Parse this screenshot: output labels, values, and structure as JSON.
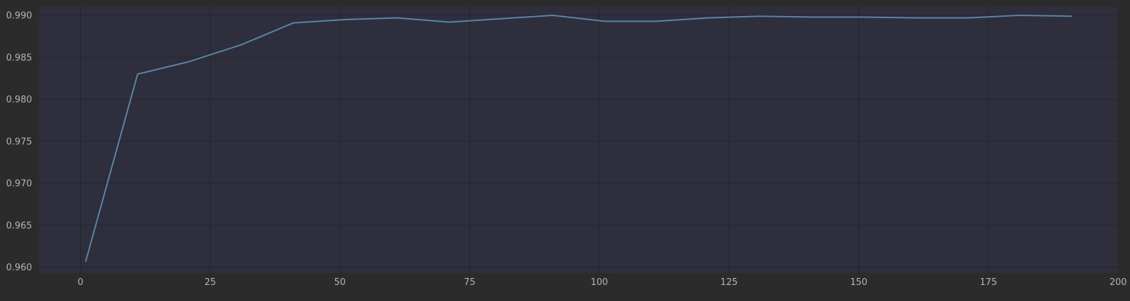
{
  "chart_data": {
    "type": "line",
    "title": "",
    "xlabel": "",
    "ylabel": "",
    "xlim": [
      -8,
      200
    ],
    "ylim": [
      0.9593,
      0.991
    ],
    "x_ticks": [
      0,
      25,
      50,
      75,
      100,
      125,
      150,
      175,
      200
    ],
    "y_ticks": [
      0.96,
      0.965,
      0.97,
      0.975,
      0.98,
      0.985,
      0.99
    ],
    "x_tick_labels": [
      "0",
      "25",
      "50",
      "75",
      "100",
      "125",
      "150",
      "175",
      "200"
    ],
    "y_tick_labels": [
      "0.960",
      "0.965",
      "0.970",
      "0.975",
      "0.980",
      "0.985",
      "0.990"
    ],
    "grid": true,
    "legend": "none",
    "colors": {
      "page_background": "#2b2b2b",
      "plot_background": "#2e2e3c",
      "grid": "#26262f",
      "line": "#5b84a6"
    },
    "series": [
      {
        "color": "#5b84a6",
        "x": [
          1,
          11,
          21,
          31,
          41,
          51,
          61,
          71,
          81,
          91,
          101,
          111,
          121,
          131,
          141,
          151,
          161,
          171,
          181,
          191
        ],
        "y": [
          0.9607,
          0.983,
          0.9845,
          0.9865,
          0.9891,
          0.9895,
          0.9897,
          0.9892,
          0.9896,
          0.99,
          0.9893,
          0.9893,
          0.9897,
          0.9899,
          0.9898,
          0.9898,
          0.9897,
          0.9897,
          0.99,
          0.9899
        ]
      }
    ]
  }
}
